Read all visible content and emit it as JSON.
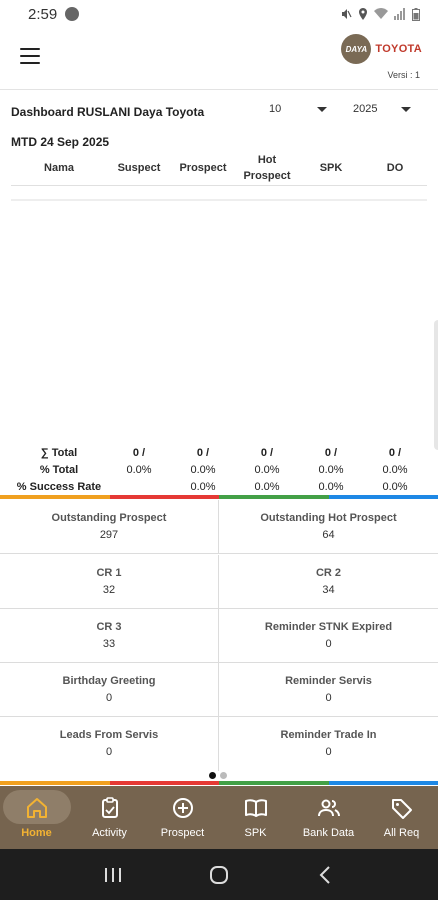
{
  "status_bar": {
    "time": "2:59"
  },
  "header": {
    "brand_logo_text": "DAYA",
    "brand_name": "TOYOTA",
    "version": "Versi : 1"
  },
  "dashboard": {
    "title": "Dashboard RUSLANI Daya Toyota",
    "month_value": "10",
    "year_value": "2025",
    "mtd_label": "MTD 24 Sep 2025"
  },
  "table": {
    "columns": [
      "Nama",
      "Suspect",
      "Prospect",
      "Hot\nProspect",
      "SPK",
      "DO"
    ],
    "total_label": "∑ Total",
    "percent_total_label": "% Total",
    "success_rate_label": "% Success Rate",
    "totals": [
      "0 /",
      "0 /",
      "0 /",
      "0 /",
      "0 /"
    ],
    "percent_totals": [
      "0.0%",
      "0.0%",
      "0.0%",
      "0.0%",
      "0.0%"
    ],
    "success_rates": [
      "0.0%",
      "0.0%",
      "0.0%",
      "0.0%"
    ]
  },
  "tiles": [
    {
      "label": "Outstanding Prospect",
      "value": "297"
    },
    {
      "label": "Outstanding Hot Prospect",
      "value": "64"
    },
    {
      "label": "CR 1",
      "value": "32"
    },
    {
      "label": "CR 2",
      "value": "34"
    },
    {
      "label": "CR 3",
      "value": "33"
    },
    {
      "label": "Reminder STNK Expired",
      "value": "0"
    },
    {
      "label": "Birthday Greeting",
      "value": "0"
    },
    {
      "label": "Reminder Servis",
      "value": "0"
    },
    {
      "label": "Leads From Servis",
      "value": "0"
    },
    {
      "label": "Reminder Trade In",
      "value": "0"
    }
  ],
  "bottom_nav": [
    {
      "label": "Home",
      "icon": "home-icon",
      "active": true
    },
    {
      "label": "Activity",
      "icon": "clipboard-icon"
    },
    {
      "label": "Prospect",
      "icon": "add-circle-icon"
    },
    {
      "label": "SPK",
      "icon": "book-icon"
    },
    {
      "label": "Bank Data",
      "icon": "people-icon"
    },
    {
      "label": "All Req",
      "icon": "tag-icon"
    }
  ],
  "colors": {
    "nav_bg": "#76644f",
    "active_nav": "#f2b233",
    "bar_orange": "#f0a020",
    "bar_red": "#e53935",
    "bar_green": "#43a047",
    "bar_blue": "#1e88e5"
  }
}
